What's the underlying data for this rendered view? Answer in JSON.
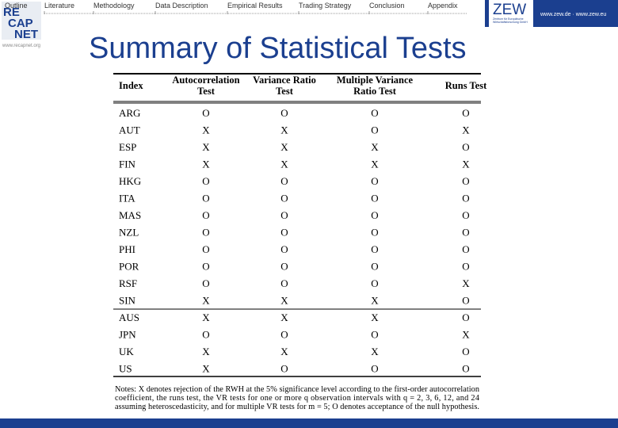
{
  "nav": {
    "items": [
      "Outline",
      "Literature",
      "Methodology",
      "Data Description",
      "Empirical Results",
      "Trading Strategy",
      "Conclusion",
      "Appendix"
    ],
    "active": 4
  },
  "logo_left": {
    "lines": [
      "RE",
      "CAP",
      "NET"
    ],
    "url": "www.recapnet.org"
  },
  "logo_right": {
    "name": "ZEW",
    "subtitle": [
      "Zentrum für Europäische",
      "Wirtschaftsforschung GmbH"
    ],
    "url": "www.zew.de · www.zew.eu"
  },
  "title": "Summary of Statistical Tests",
  "table": {
    "header": [
      [
        "Index"
      ],
      [
        "Autocorrelation",
        "Test"
      ],
      [
        "Variance Ratio",
        "Test"
      ],
      [
        "Multiple Variance",
        "Ratio Test"
      ],
      [
        "Runs Test"
      ]
    ],
    "rows": [
      [
        "ARG",
        "O",
        "O",
        "O",
        "O"
      ],
      [
        "AUT",
        "X",
        "X",
        "O",
        "X"
      ],
      [
        "ESP",
        "X",
        "X",
        "X",
        "O"
      ],
      [
        "FIN",
        "X",
        "X",
        "X",
        "X"
      ],
      [
        "HKG",
        "O",
        "O",
        "O",
        "O"
      ],
      [
        "ITA",
        "O",
        "O",
        "O",
        "O"
      ],
      [
        "MAS",
        "O",
        "O",
        "O",
        "O"
      ],
      [
        "NZL",
        "O",
        "O",
        "O",
        "O"
      ],
      [
        "PHI",
        "O",
        "O",
        "O",
        "O"
      ],
      [
        "POR",
        "O",
        "O",
        "O",
        "O"
      ],
      [
        "RSF",
        "O",
        "O",
        "O",
        "X"
      ],
      [
        "SIN",
        "X",
        "X",
        "X",
        "O"
      ],
      [
        "AUS",
        "X",
        "X",
        "X",
        "O"
      ],
      [
        "JPN",
        "O",
        "O",
        "O",
        "X"
      ],
      [
        "UK",
        "X",
        "X",
        "X",
        "O"
      ],
      [
        "US",
        "X",
        "O",
        "O",
        "O"
      ]
    ],
    "notes": [
      "Notes: X denotes rejection of the RWH at the 5% significance level according to the first-order autocorrelation",
      "coefficient, the runs test, the VR tests for one or more q observation intervals with q = 2, 3, 6, 12, and 24",
      "assuming heteroscedasticity, and for multiple VR tests for m = 5; O denotes acceptance of the null hypothesis."
    ]
  }
}
